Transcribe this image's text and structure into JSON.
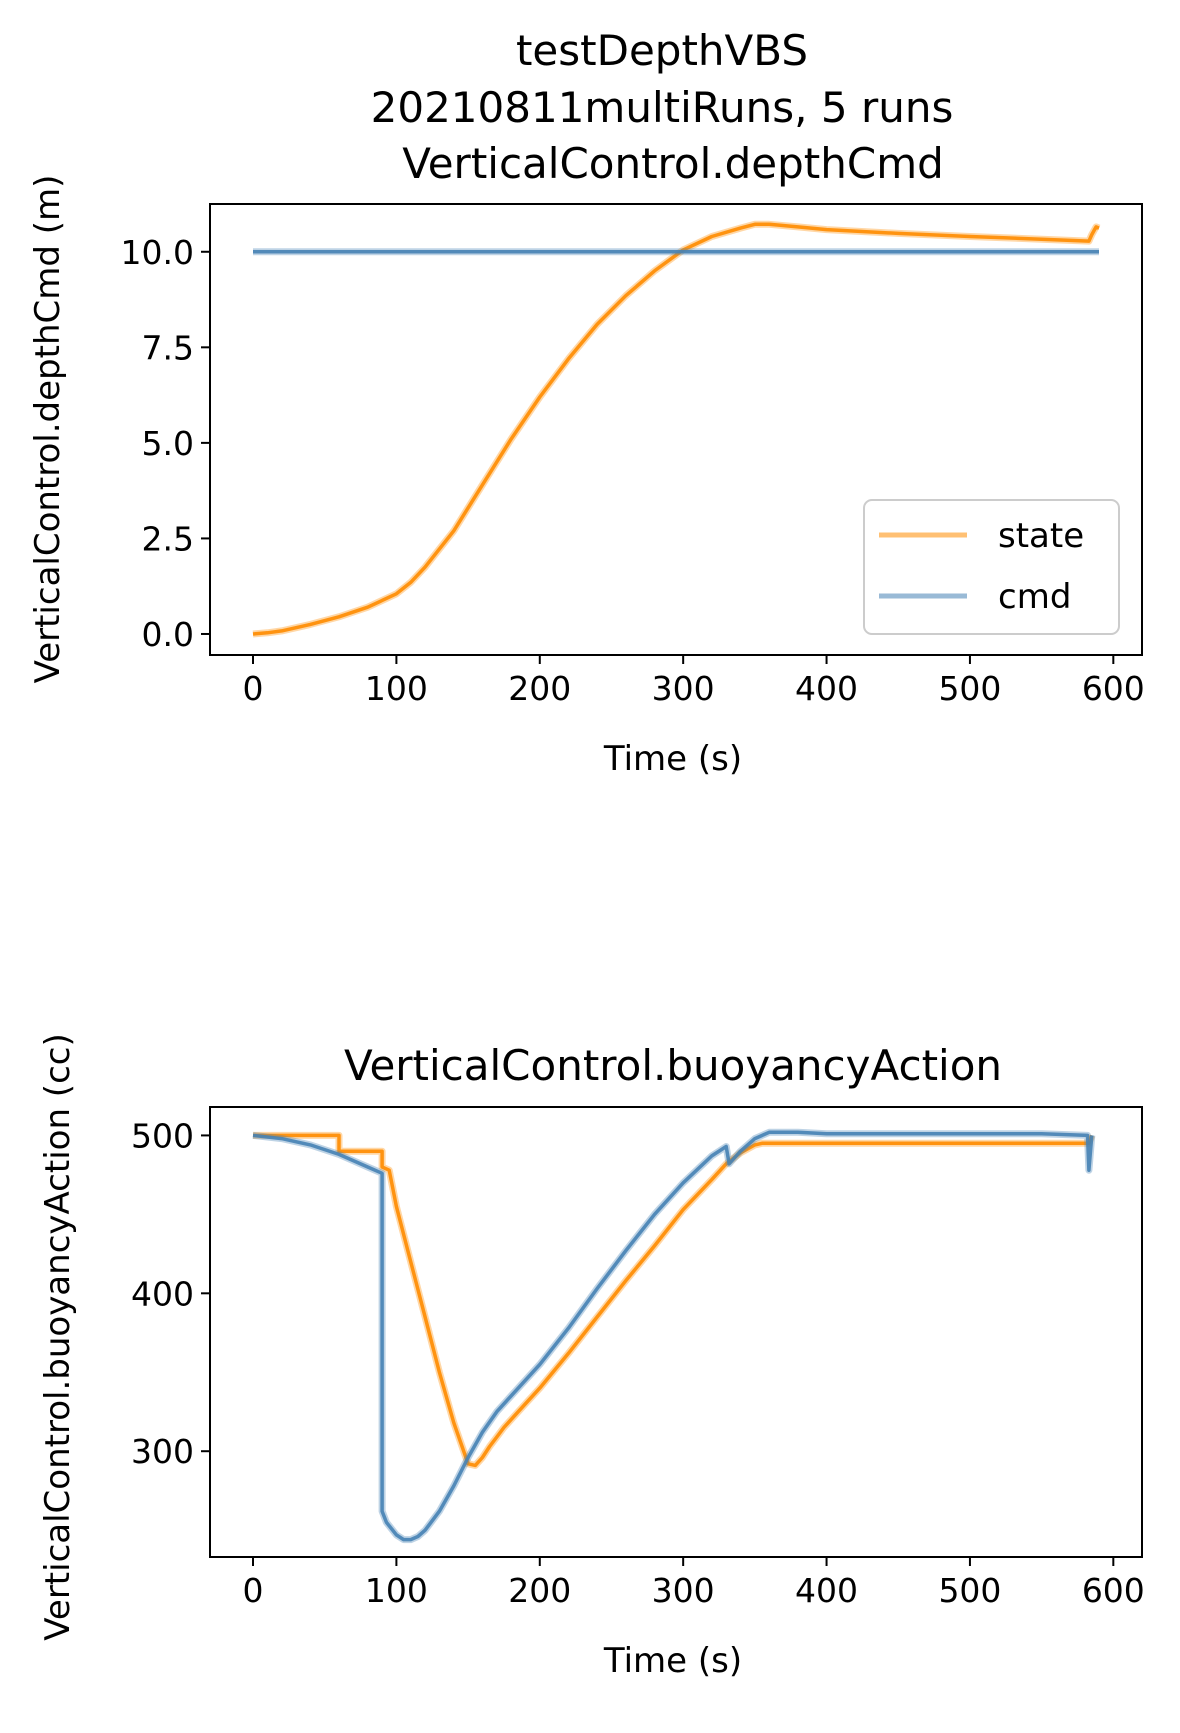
{
  "colors": {
    "state": "#ff8c00",
    "cmd": "#4682b4"
  },
  "legend_labels": {
    "state": "state",
    "cmd": "cmd"
  },
  "chart_data": [
    {
      "type": "line",
      "title_lines": [
        "testDepthVBS",
        "20210811multiRuns, 5 runs",
        "VerticalControl.depthCmd"
      ],
      "xlabel": "Time (s)",
      "ylabel": "VerticalControl.depthCmd (m)",
      "xlim": [
        -30,
        620
      ],
      "ylim": [
        -0.55,
        11.25
      ],
      "xticks": [
        0,
        100,
        200,
        300,
        400,
        500,
        600
      ],
      "xtick_labels": [
        "0",
        "100",
        "200",
        "300",
        "400",
        "500",
        "600"
      ],
      "yticks": [
        0,
        2.5,
        5,
        7.5,
        10
      ],
      "ytick_labels": [
        "0.0",
        "2.5",
        "5.0",
        "7.5",
        "10.0"
      ],
      "grid": false,
      "legend": "lower-right",
      "series": [
        {
          "name": "state",
          "x": [
            0,
            10,
            20,
            40,
            60,
            80,
            100,
            110,
            120,
            140,
            160,
            180,
            200,
            220,
            240,
            260,
            280,
            300,
            320,
            340,
            350,
            360,
            380,
            400,
            450,
            500,
            550,
            583,
            585,
            588,
            590
          ],
          "y": [
            0.0,
            0.03,
            0.08,
            0.25,
            0.45,
            0.7,
            1.05,
            1.35,
            1.75,
            2.7,
            3.9,
            5.1,
            6.2,
            7.2,
            8.1,
            8.85,
            9.5,
            10.05,
            10.4,
            10.62,
            10.72,
            10.72,
            10.65,
            10.58,
            10.48,
            10.4,
            10.33,
            10.28,
            10.45,
            10.65,
            10.62
          ]
        },
        {
          "name": "cmd",
          "x": [
            0,
            590
          ],
          "y": [
            10.0,
            10.0
          ]
        }
      ]
    },
    {
      "type": "line",
      "title_lines": [
        "VerticalControl.buoyancyAction"
      ],
      "xlabel": "Time (s)",
      "ylabel": "VerticalControl.buoyancyAction (cc)",
      "xlim": [
        -30,
        620
      ],
      "ylim": [
        233,
        518
      ],
      "xticks": [
        0,
        100,
        200,
        300,
        400,
        500,
        600
      ],
      "xtick_labels": [
        "0",
        "100",
        "200",
        "300",
        "400",
        "500",
        "600"
      ],
      "yticks": [
        300,
        400,
        500
      ],
      "ytick_labels": [
        "300",
        "400",
        "500"
      ],
      "grid": false,
      "legend": "none",
      "series": [
        {
          "name": "state",
          "x": [
            0,
            60,
            60,
            90,
            90,
            95,
            100,
            110,
            120,
            130,
            140,
            150,
            155,
            160,
            165,
            170,
            175,
            180,
            190,
            200,
            220,
            240,
            260,
            280,
            300,
            320,
            330,
            340,
            350,
            355,
            360,
            400,
            450,
            500,
            550,
            583,
            585
          ],
          "y": [
            500,
            500,
            490,
            490,
            480,
            478,
            455,
            420,
            385,
            350,
            318,
            292,
            291,
            296,
            303,
            309,
            315,
            320,
            330,
            340,
            362,
            385,
            408,
            430,
            453,
            472,
            482,
            489,
            494,
            495,
            495,
            495,
            495,
            495,
            495,
            495,
            500
          ]
        },
        {
          "name": "cmd",
          "x": [
            0,
            20,
            40,
            60,
            80,
            90,
            90,
            93,
            100,
            105,
            110,
            115,
            120,
            130,
            140,
            150,
            160,
            170,
            180,
            200,
            220,
            240,
            260,
            280,
            300,
            320,
            330,
            332,
            340,
            350,
            360,
            380,
            400,
            450,
            500,
            550,
            582,
            583,
            585
          ],
          "y": [
            500,
            498,
            494,
            488,
            480,
            476,
            262,
            255,
            247,
            244,
            244,
            246,
            250,
            262,
            278,
            296,
            312,
            325,
            335,
            355,
            378,
            403,
            427,
            450,
            470,
            487,
            493,
            482,
            490,
            498,
            502,
            502,
            501,
            501,
            501,
            501,
            500,
            478,
            500
          ]
        }
      ]
    }
  ]
}
